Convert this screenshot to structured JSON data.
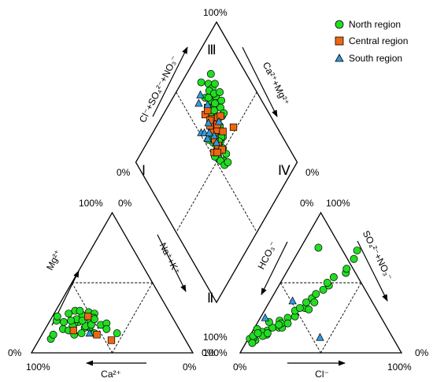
{
  "chart_data": {
    "type": "scatter",
    "subtype": "piper-diagram",
    "colors": {
      "north": "#22dd22",
      "central": "#ee6611",
      "south": "#3399dd"
    },
    "legend": {
      "placement": "top-right",
      "items": [
        {
          "name": "North region",
          "marker": "circle",
          "color_key": "north"
        },
        {
          "name": "Central region",
          "marker": "square",
          "color_key": "central"
        },
        {
          "name": "South region",
          "marker": "triangle",
          "color_key": "south"
        }
      ]
    },
    "labels": {
      "cation_bottom": "Ca²⁺",
      "cation_left": "Mg²⁺",
      "anion_bottom": "Cl⁻",
      "anion_left": "HCO₃⁻",
      "anion_right": "SO₄²⁻+NO₃⁻",
      "diamond_upper_left": "Cl⁻+SO₄²⁻+NO₃⁻",
      "diamond_upper_right": "Ca²⁺+Mg²⁺",
      "diamond_lower_left": "Na⁺+K⁺",
      "zone_top": "Ⅲ",
      "zone_left": "Ⅰ",
      "zone_right": "Ⅳ",
      "zone_bottom": "Ⅱ",
      "pct_100": "100%",
      "pct_0": "0%"
    },
    "series": [
      {
        "name": "North region",
        "cation": [
          [
            67,
            13
          ],
          [
            55,
            18
          ],
          [
            72,
            17
          ],
          [
            60,
            22
          ],
          [
            47,
            20
          ],
          [
            53,
            26
          ],
          [
            43,
            21
          ],
          [
            58,
            30
          ],
          [
            50,
            29
          ],
          [
            63,
            21
          ],
          [
            58,
            18
          ],
          [
            65,
            19
          ],
          [
            55,
            27
          ],
          [
            47,
            28
          ],
          [
            69,
            22
          ],
          [
            52,
            23
          ],
          [
            49,
            25
          ],
          [
            73,
            23
          ],
          [
            45,
            17
          ],
          [
            57,
            19
          ],
          [
            69,
            16
          ],
          [
            63,
            28
          ],
          [
            55,
            30
          ],
          [
            71,
            26
          ],
          [
            60,
            24
          ],
          [
            53,
            20
          ],
          [
            62,
            14
          ],
          [
            64,
            23
          ],
          [
            49,
            24
          ],
          [
            57,
            23
          ],
          [
            54,
            14
          ],
          [
            83,
            10
          ],
          [
            80,
            13
          ],
          [
            40,
            14
          ]
        ],
        "anion": [
          [
            1,
            10
          ],
          [
            5,
            9
          ],
          [
            3,
            11
          ],
          [
            10,
            13
          ],
          [
            9,
            16
          ],
          [
            15,
            18
          ],
          [
            17,
            25
          ],
          [
            21,
            26
          ],
          [
            19,
            30
          ],
          [
            24,
            32
          ],
          [
            23,
            36
          ],
          [
            25,
            39
          ],
          [
            26,
            42
          ],
          [
            29,
            45
          ],
          [
            31,
            48
          ],
          [
            29,
            50
          ],
          [
            31,
            54
          ],
          [
            37,
            57
          ],
          [
            36,
            60
          ],
          [
            37,
            67
          ],
          [
            36,
            73
          ],
          [
            11,
            75
          ],
          [
            2,
            12
          ],
          [
            6,
            15
          ],
          [
            8,
            12
          ],
          [
            11,
            18
          ],
          [
            13,
            23
          ],
          [
            17,
            18
          ],
          [
            4,
            7
          ],
          [
            15,
            21
          ],
          [
            19,
            21
          ],
          [
            21,
            32
          ],
          [
            2,
            17
          ],
          [
            7,
            22
          ],
          [
            27,
            31
          ],
          [
            4,
            14
          ],
          [
            28,
            36
          ],
          [
            10,
            14
          ],
          [
            14,
            20
          ]
        ],
        "diamond": [
          [
            78,
            85
          ],
          [
            68,
            75
          ],
          [
            73,
            83
          ],
          [
            65,
            70
          ],
          [
            75,
            69
          ],
          [
            74,
            79
          ],
          [
            63,
            71
          ],
          [
            66,
            80
          ],
          [
            70,
            63
          ],
          [
            60,
            66
          ],
          [
            69,
            88
          ],
          [
            66,
            73
          ],
          [
            71,
            80
          ],
          [
            67,
            70
          ],
          [
            77,
            79
          ],
          [
            72,
            67
          ],
          [
            73,
            74
          ],
          [
            60,
            55
          ],
          [
            72,
            63
          ],
          [
            64,
            61
          ],
          [
            63,
            55
          ],
          [
            59,
            51
          ],
          [
            59,
            47
          ],
          [
            55,
            46
          ],
          [
            64,
            60
          ],
          [
            53,
            53
          ],
          [
            55,
            54
          ],
          [
            55,
            59
          ],
          [
            64,
            65
          ],
          [
            59,
            60
          ],
          [
            56,
            56
          ],
          [
            53,
            51
          ],
          [
            58,
            58
          ],
          [
            62,
            56
          ],
          [
            59,
            56
          ],
          [
            65,
            61
          ],
          [
            51,
            53
          ],
          [
            53,
            48
          ],
          [
            56,
            63
          ],
          [
            53,
            63
          ],
          [
            54,
            44
          ],
          [
            57,
            43
          ],
          [
            73,
            76
          ],
          [
            68,
            78
          ],
          [
            77,
            73
          ],
          [
            70,
            72
          ]
        ]
      },
      {
        "name": "Central region",
        "cation": [
          [
            66,
            16
          ],
          [
            53,
            13
          ],
          [
            46,
            9
          ],
          [
            52,
            26
          ]
        ],
        "diamond": [
          [
            60,
            74
          ],
          [
            63,
            68
          ],
          [
            60,
            62
          ],
          [
            58,
            64
          ],
          [
            62,
            61
          ],
          [
            59,
            67
          ],
          [
            61,
            69
          ],
          [
            57,
            59
          ],
          [
            52,
            55
          ],
          [
            57,
            55
          ],
          [
            64,
            75
          ],
          [
            67,
            65
          ],
          [
            58,
            51
          ],
          [
            65,
            57
          ],
          [
            63,
            74
          ],
          [
            54,
            53
          ],
          [
            73,
            52
          ],
          [
            69,
            64
          ],
          [
            64,
            63
          ]
        ]
      },
      {
        "name": "South region",
        "cation": [
          [
            57,
            14
          ]
        ],
        "anion": [
          [
            3,
            25
          ],
          [
            14,
            37
          ],
          [
            44,
            11
          ]
        ],
        "diamond": [
          [
            64,
            84
          ],
          [
            66,
            63
          ],
          [
            51,
            70
          ],
          [
            53,
            68
          ],
          [
            59,
            69
          ],
          [
            53,
            64
          ],
          [
            60,
            82
          ],
          [
            58,
            61
          ],
          [
            57,
            57
          ],
          [
            65,
            76
          ],
          [
            56,
            65
          ]
        ]
      }
    ]
  }
}
